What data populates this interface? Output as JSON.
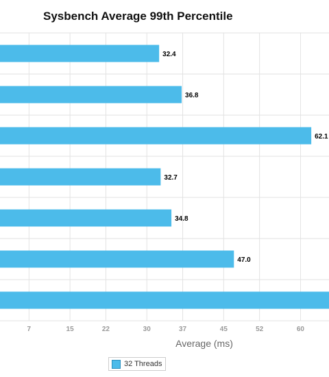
{
  "chart_data": {
    "type": "bar",
    "orientation": "horizontal",
    "title": "Sysbench Average 99th Percentile",
    "xlabel": "Average (ms)",
    "ylabel": "",
    "x_ticks": [
      "7",
      "15",
      "22",
      "30",
      "37",
      "45",
      "52",
      "60"
    ],
    "xlim": [
      1.4,
      66.5
    ],
    "grid": true,
    "legend_position": "bottom",
    "series": [
      {
        "name": "32 Threads",
        "color": "#4cbbea",
        "values": [
          32.4,
          36.8,
          62.1,
          32.7,
          34.8,
          47.0,
          68.0
        ],
        "labels": [
          "32.4",
          "36.8",
          "62.1",
          "32.7",
          "34.8",
          "47.0",
          ""
        ]
      }
    ]
  }
}
